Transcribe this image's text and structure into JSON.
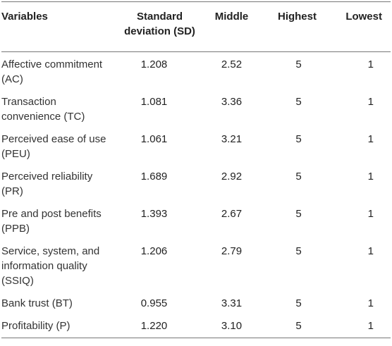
{
  "table": {
    "headers": {
      "variables": "Variables",
      "sd": "Standard deviation (SD)",
      "middle": "Middle",
      "highest": "Highest",
      "lowest": "Lowest"
    },
    "rows": [
      {
        "variable": "Affective commitment (AC)",
        "sd": "1.208",
        "middle": "2.52",
        "highest": "5",
        "lowest": "1"
      },
      {
        "variable": "Transaction convenience (TC)",
        "sd": "1.081",
        "middle": "3.36",
        "highest": "5",
        "lowest": "1"
      },
      {
        "variable": "Perceived ease of use (PEU)",
        "sd": "1.061",
        "middle": "3.21",
        "highest": "5",
        "lowest": "1"
      },
      {
        "variable": "Perceived reliability (PR)",
        "sd": "1.689",
        "middle": "2.92",
        "highest": "5",
        "lowest": "1"
      },
      {
        "variable": "Pre and post benefits (PPB)",
        "sd": "1.393",
        "middle": "2.67",
        "highest": "5",
        "lowest": "1"
      },
      {
        "variable": "Service, system, and information quality (SSIQ)",
        "sd": "1.206",
        "middle": "2.79",
        "highest": "5",
        "lowest": "1"
      },
      {
        "variable": "Bank trust (BT)",
        "sd": "0.955",
        "middle": "3.31",
        "highest": "5",
        "lowest": "1"
      },
      {
        "variable": "Profitability (P)",
        "sd": "1.220",
        "middle": "3.10",
        "highest": "5",
        "lowest": "1"
      }
    ]
  }
}
